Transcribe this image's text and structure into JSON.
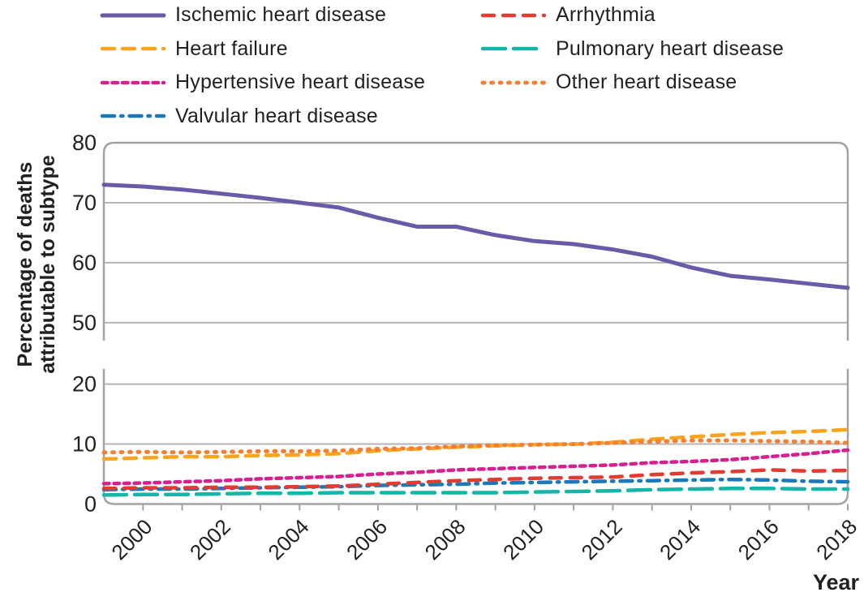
{
  "chart_data": {
    "type": "line",
    "title": "",
    "xlabel": "Year",
    "ylabel": "Percentage of deaths attributable to subtype",
    "ylabel_lines": [
      "Percentage of deaths",
      "attributable to subtype"
    ],
    "x": [
      1999,
      2000,
      2001,
      2002,
      2003,
      2004,
      2005,
      2006,
      2007,
      2008,
      2009,
      2010,
      2011,
      2012,
      2013,
      2014,
      2015,
      2016,
      2017,
      2018
    ],
    "xtick_labels": [
      "2000",
      "2002",
      "2004",
      "2006",
      "2008",
      "2010",
      "2012",
      "2014",
      "2016",
      "2018"
    ],
    "axis_break": {
      "lower_ylim": [
        0,
        22.5
      ],
      "upper_ylim": [
        47,
        80
      ]
    },
    "yticks_upper": [
      80,
      70,
      60,
      50
    ],
    "yticks_lower": [
      20,
      10,
      0
    ],
    "grid": true,
    "legend_position": "top",
    "colors": {
      "text": "#231f20",
      "gridline": "#b5b5b5",
      "axis": "#a3a3a3"
    },
    "series": [
      {
        "name": "Ischemic heart disease",
        "color": "#6a5aa8",
        "dash": "none",
        "width": 5,
        "values": [
          73.0,
          72.7,
          72.2,
          71.5,
          70.8,
          70.0,
          69.2,
          67.5,
          66.0,
          66.0,
          64.6,
          63.6,
          63.1,
          62.2,
          61.0,
          59.2,
          57.8,
          57.2,
          56.5,
          55.8
        ]
      },
      {
        "name": "Heart failure",
        "color": "#f8a41c",
        "dash": "15 10",
        "width": 4.5,
        "values": [
          7.5,
          7.7,
          7.9,
          7.9,
          8.1,
          8.2,
          8.4,
          8.9,
          9.2,
          9.5,
          9.7,
          9.9,
          10.0,
          10.3,
          10.8,
          11.2,
          11.6,
          11.9,
          12.1,
          12.4
        ]
      },
      {
        "name": "Hypertensive heart disease",
        "color": "#d81f8f",
        "dash": "6.5 6",
        "width": 4.5,
        "values": [
          3.4,
          3.5,
          3.7,
          3.9,
          4.2,
          4.4,
          4.6,
          5.0,
          5.3,
          5.7,
          5.9,
          6.1,
          6.3,
          6.5,
          6.9,
          7.1,
          7.4,
          7.9,
          8.4,
          9.0
        ]
      },
      {
        "name": "Valvular heart disease",
        "color": "#1b79b9",
        "dash": "15 8 2.5 8",
        "width": 4.5,
        "values": [
          2.4,
          2.5,
          2.5,
          2.6,
          2.7,
          2.8,
          2.9,
          3.1,
          3.2,
          3.3,
          3.5,
          3.6,
          3.7,
          3.8,
          3.9,
          4.0,
          4.1,
          4.0,
          3.8,
          3.7
        ]
      },
      {
        "name": "Arrhythmia",
        "color": "#e23c32",
        "dash": "14 11",
        "width": 4.5,
        "values": [
          2.6,
          2.7,
          2.7,
          2.8,
          2.8,
          2.9,
          3.0,
          3.3,
          3.6,
          3.9,
          4.1,
          4.3,
          4.4,
          4.5,
          4.9,
          5.2,
          5.4,
          5.7,
          5.5,
          5.6
        ]
      },
      {
        "name": "Pulmonary heart disease",
        "color": "#13b6a9",
        "dash": "28 10",
        "width": 4.5,
        "values": [
          1.5,
          1.6,
          1.6,
          1.7,
          1.8,
          1.8,
          1.9,
          1.9,
          1.9,
          1.9,
          1.9,
          2.0,
          2.1,
          2.2,
          2.4,
          2.5,
          2.6,
          2.6,
          2.5,
          2.5
        ]
      },
      {
        "name": "Other heart disease",
        "color": "#f57f32",
        "dash": "2 8.5",
        "width": 5,
        "values": [
          8.6,
          8.7,
          8.6,
          8.7,
          8.8,
          8.8,
          8.9,
          9.2,
          9.3,
          9.6,
          9.8,
          9.9,
          10.0,
          10.2,
          10.4,
          10.6,
          10.6,
          10.5,
          10.4,
          10.2
        ]
      }
    ]
  }
}
